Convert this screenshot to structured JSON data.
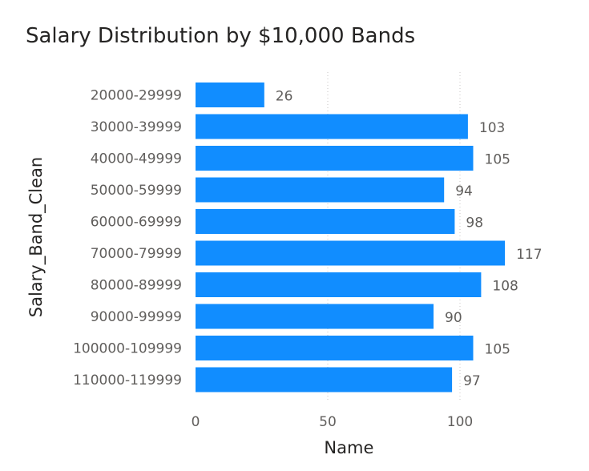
{
  "chart_data": {
    "type": "bar",
    "orientation": "horizontal",
    "title": "Salary Distribution by $10,000 Bands",
    "xlabel": "Name",
    "ylabel": "Salary_Band_Clean",
    "categories": [
      "20000-29999",
      "30000-39999",
      "40000-49999",
      "50000-59999",
      "60000-69999",
      "70000-79999",
      "80000-89999",
      "90000-99999",
      "100000-109999",
      "110000-119999"
    ],
    "values": [
      26,
      103,
      105,
      94,
      98,
      117,
      108,
      90,
      105,
      97
    ],
    "xlim": [
      0,
      120
    ],
    "xticks": [
      0,
      50,
      100
    ],
    "grid": true,
    "data_labels": true,
    "bar_color": "#118DFF"
  }
}
